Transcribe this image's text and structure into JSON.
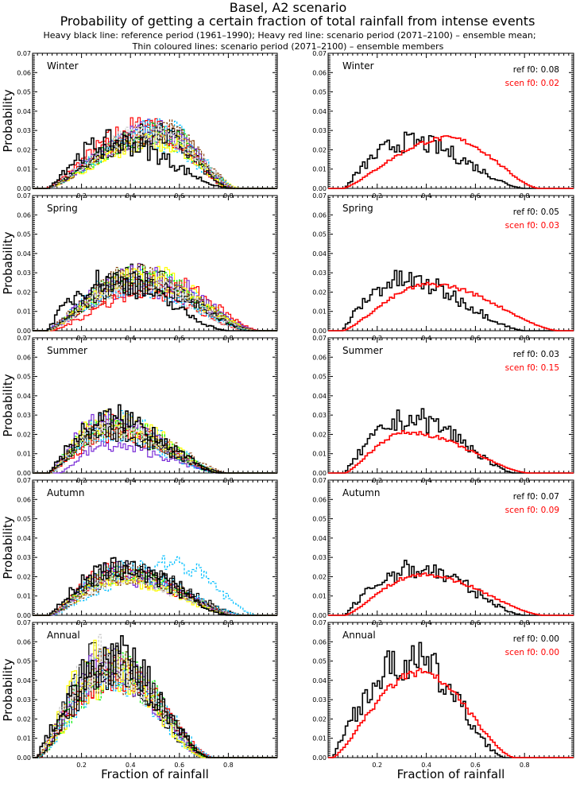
{
  "header": {
    "title": "Basel, A2 scenario",
    "subtitle": "Probability of getting a certain fraction of total rainfall from intense events",
    "note1": "Heavy black line: reference period (1961–1990); Heavy red line: scenario period (2071–2100) – ensemble mean;",
    "note2": "Thin coloured lines: scenario period (2071–2100) – ensemble members"
  },
  "chart_data": {
    "type": "line",
    "subtype": "step-histogram",
    "xlabel": "Fraction of rainfall",
    "ylabel": "Probability",
    "xlim": [
      0.0,
      1.0
    ],
    "ylim": [
      0.0,
      0.07
    ],
    "xticks": [
      "0.2",
      "0.4",
      "0.6",
      "0.8"
    ],
    "yticks": [
      "0.00",
      "0.01",
      "0.02",
      "0.03",
      "0.04",
      "0.05",
      "0.06",
      "0.07"
    ],
    "colors": {
      "reference": "#000000",
      "scenario_mean": "#ff0000",
      "members": [
        "#ff0000",
        "#00ee00",
        "#7b2fd8",
        "#00bfff",
        "#ffff00",
        "#8b4513",
        "#000000",
        "#c8c8c8"
      ]
    },
    "panels": [
      {
        "season": "Winter",
        "ref_f0": "ref  f0: 0.08",
        "scen_f0": "scen f0: 0.02",
        "ref_peak_x": 0.33,
        "ref_peak_y": 0.024,
        "ref_range": [
          0.07,
          0.8
        ],
        "scen_peak_x": 0.49,
        "scen_peak_y": 0.026,
        "scen_range": [
          0.06,
          0.86
        ],
        "members_peak_x": 0.5,
        "members_peak_y": 0.028
      },
      {
        "season": "Spring",
        "ref_f0": "ref  f0: 0.05",
        "scen_f0": "scen f0: 0.03",
        "ref_peak_x": 0.3,
        "ref_peak_y": 0.026,
        "ref_range": [
          0.06,
          0.8
        ],
        "scen_peak_x": 0.42,
        "scen_peak_y": 0.024,
        "scen_range": [
          0.06,
          0.94
        ],
        "members_peak_x": 0.42,
        "members_peak_y": 0.026
      },
      {
        "season": "Summer",
        "ref_f0": "ref  f0: 0.03",
        "scen_f0": "scen f0: 0.15",
        "ref_peak_x": 0.34,
        "ref_peak_y": 0.028,
        "ref_range": [
          0.07,
          0.76
        ],
        "scen_peak_x": 0.32,
        "scen_peak_y": 0.021,
        "scen_range": [
          0.07,
          0.82
        ],
        "members_peak_x": 0.3,
        "members_peak_y": 0.024
      },
      {
        "season": "Autumn",
        "ref_f0": "ref  f0: 0.07",
        "scen_f0": "scen f0: 0.09",
        "ref_peak_x": 0.36,
        "ref_peak_y": 0.024,
        "ref_range": [
          0.07,
          0.8
        ],
        "scen_peak_x": 0.38,
        "scen_peak_y": 0.021,
        "scen_range": [
          0.07,
          0.88
        ],
        "members_peak_x": 0.36,
        "members_peak_y": 0.022
      },
      {
        "season": "Annual",
        "ref_f0": "ref  f0: 0.00",
        "scen_f0": "scen f0: 0.00",
        "ref_peak_x": 0.34,
        "ref_peak_y": 0.05,
        "ref_range": [
          0.02,
          0.72
        ],
        "scen_peak_x": 0.37,
        "scen_peak_y": 0.044,
        "scen_range": [
          0.02,
          0.76
        ],
        "members_peak_x": 0.31,
        "members_peak_y": 0.046
      }
    ]
  }
}
